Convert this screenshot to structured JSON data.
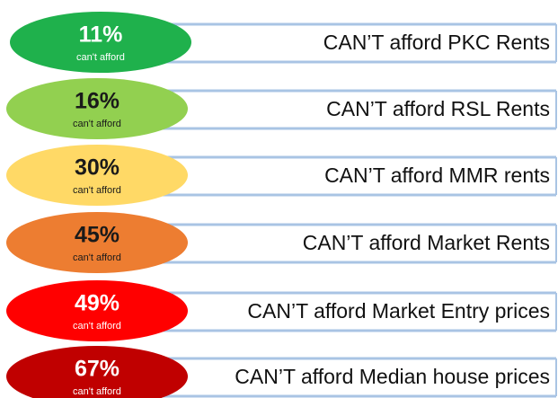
{
  "items": [
    {
      "percent": "11%",
      "sub": "can't afford",
      "label": "CAN’T afford PKC Rents",
      "color": "#1fb14c",
      "text_color": "#ffffff"
    },
    {
      "percent": "16%",
      "sub": "can't afford",
      "label": "CAN’T afford RSL Rents",
      "color": "#92d050",
      "text_color": "#1a1a1a"
    },
    {
      "percent": "30%",
      "sub": "can't afford",
      "label": "CAN’T afford MMR rents",
      "color": "#ffd966",
      "text_color": "#1a1a1a"
    },
    {
      "percent": "45%",
      "sub": "can't afford",
      "label": "CAN’T afford Market Rents",
      "color": "#ed7d31",
      "text_color": "#1a1a1a"
    },
    {
      "percent": "49%",
      "sub": "can't afford",
      "label": "CAN’T afford Market Entry prices",
      "color": "#ff0000",
      "text_color": "#ffffff"
    },
    {
      "percent": "67%",
      "sub": "can't afford",
      "label": "CAN’T afford Median house prices",
      "color": "#c00000",
      "text_color": "#ffffff"
    }
  ]
}
